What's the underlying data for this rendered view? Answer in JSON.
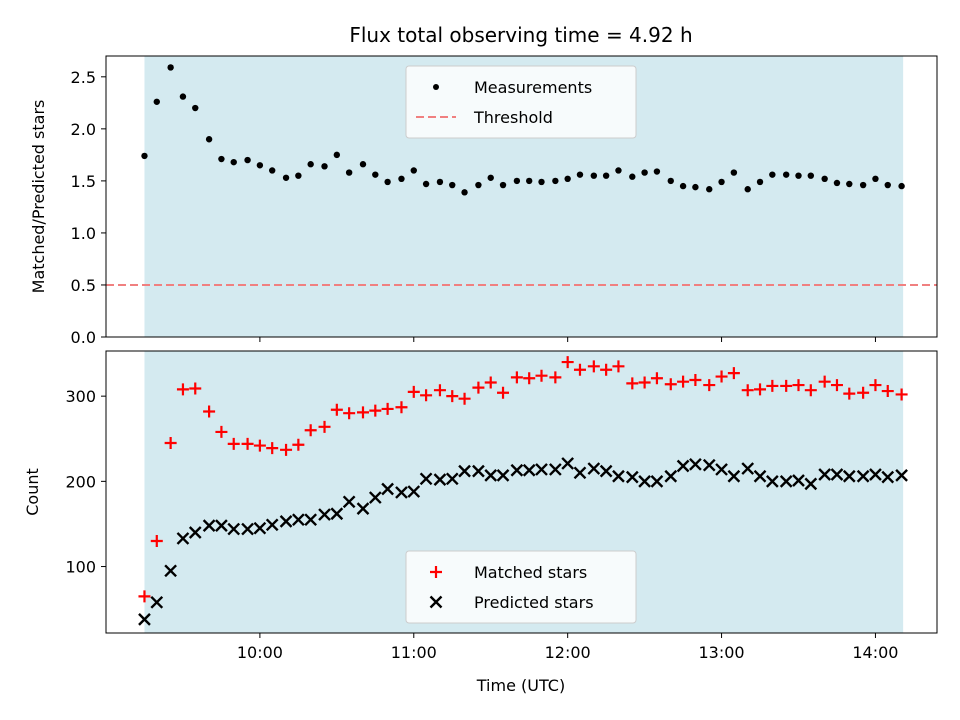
{
  "chart_data": {
    "title": "Flux total observing time = 4.92 h",
    "xlabel": "Time (UTC)",
    "x_ticks": [
      "10:00",
      "11:00",
      "12:00",
      "13:00",
      "14:00"
    ],
    "x_tick_hours": [
      10,
      11,
      12,
      13,
      14
    ],
    "xlim_hours": [
      9.0,
      14.4
    ],
    "observing_interval_hours": [
      9.25,
      14.18
    ],
    "colors": {
      "span": "#d4eaf0",
      "measurements": "#000000",
      "threshold": "#f08080",
      "matched": "#ff0000",
      "predicted": "#000000"
    },
    "panels": [
      {
        "type": "scatter",
        "ylabel": "Matched/Predicted stars",
        "ylim": [
          0,
          2.7
        ],
        "y_ticks": [
          "0.0",
          "0.5",
          "1.0",
          "1.5",
          "2.0",
          "2.5"
        ],
        "y_tick_values": [
          0,
          0.5,
          1.0,
          1.5,
          2.0,
          2.5
        ],
        "legend_position": "upper-center",
        "threshold": {
          "name": "Threshold",
          "value": 0.5,
          "style": "dashed"
        },
        "series": [
          {
            "name": "Measurements",
            "marker": "dot",
            "x": [
              9.25,
              9.33,
              9.42,
              9.5,
              9.58,
              9.67,
              9.75,
              9.83,
              9.92,
              10.0,
              10.08,
              10.17,
              10.25,
              10.33,
              10.42,
              10.5,
              10.58,
              10.67,
              10.75,
              10.83,
              10.92,
              11.0,
              11.08,
              11.17,
              11.25,
              11.33,
              11.42,
              11.5,
              11.58,
              11.67,
              11.75,
              11.83,
              11.92,
              12.0,
              12.08,
              12.17,
              12.25,
              12.33,
              12.42,
              12.5,
              12.58,
              12.67,
              12.75,
              12.83,
              12.92,
              13.0,
              13.08,
              13.17,
              13.25,
              13.33,
              13.42,
              13.5,
              13.58,
              13.67,
              13.75,
              13.83,
              13.92,
              14.0,
              14.08,
              14.17
            ],
            "values": [
              1.74,
              2.26,
              2.59,
              2.31,
              2.2,
              1.9,
              1.71,
              1.68,
              1.7,
              1.65,
              1.6,
              1.53,
              1.55,
              1.66,
              1.64,
              1.75,
              1.58,
              1.66,
              1.56,
              1.49,
              1.52,
              1.6,
              1.47,
              1.49,
              1.46,
              1.39,
              1.46,
              1.53,
              1.46,
              1.5,
              1.5,
              1.49,
              1.5,
              1.52,
              1.56,
              1.55,
              1.55,
              1.6,
              1.54,
              1.58,
              1.59,
              1.5,
              1.45,
              1.44,
              1.42,
              1.49,
              1.58,
              1.42,
              1.49,
              1.56,
              1.56,
              1.55,
              1.55,
              1.52,
              1.48,
              1.47,
              1.46,
              1.52,
              1.46,
              1.45
            ]
          }
        ]
      },
      {
        "type": "scatter",
        "ylabel": "Count",
        "ylim": [
          22,
          353
        ],
        "y_ticks": [
          "100",
          "200",
          "300"
        ],
        "y_tick_values": [
          100,
          200,
          300
        ],
        "legend_position": "lower-center",
        "series": [
          {
            "name": "Matched stars",
            "marker": "plus",
            "x": [
              9.25,
              9.33,
              9.42,
              9.5,
              9.58,
              9.67,
              9.75,
              9.83,
              9.92,
              10.0,
              10.08,
              10.17,
              10.25,
              10.33,
              10.42,
              10.5,
              10.58,
              10.67,
              10.75,
              10.83,
              10.92,
              11.0,
              11.08,
              11.17,
              11.25,
              11.33,
              11.42,
              11.5,
              11.58,
              11.67,
              11.75,
              11.83,
              11.92,
              12.0,
              12.08,
              12.17,
              12.25,
              12.33,
              12.42,
              12.5,
              12.58,
              12.67,
              12.75,
              12.83,
              12.92,
              13.0,
              13.08,
              13.17,
              13.25,
              13.33,
              13.42,
              13.5,
              13.58,
              13.67,
              13.75,
              13.83,
              13.92,
              14.0,
              14.08,
              14.17
            ],
            "values": [
              65,
              130,
              245,
              308,
              309,
              282,
              258,
              244,
              244,
              242,
              239,
              237,
              243,
              260,
              264,
              284,
              280,
              281,
              283,
              285,
              287,
              305,
              301,
              307,
              300,
              297,
              310,
              316,
              304,
              322,
              321,
              324,
              322,
              340,
              331,
              335,
              331,
              335,
              315,
              316,
              321,
              314,
              317,
              319,
              313,
              323,
              327,
              307,
              308,
              312,
              312,
              313,
              307,
              317,
              313,
              303,
              304,
              313,
              306,
              302
            ]
          },
          {
            "name": "Predicted stars",
            "marker": "x",
            "x": [
              9.25,
              9.33,
              9.42,
              9.5,
              9.58,
              9.67,
              9.75,
              9.83,
              9.92,
              10.0,
              10.08,
              10.17,
              10.25,
              10.33,
              10.42,
              10.5,
              10.58,
              10.67,
              10.75,
              10.83,
              10.92,
              11.0,
              11.08,
              11.17,
              11.25,
              11.33,
              11.42,
              11.5,
              11.58,
              11.67,
              11.75,
              11.83,
              11.92,
              12.0,
              12.08,
              12.17,
              12.25,
              12.33,
              12.42,
              12.5,
              12.58,
              12.67,
              12.75,
              12.83,
              12.92,
              13.0,
              13.08,
              13.17,
              13.25,
              13.33,
              13.42,
              13.5,
              13.58,
              13.67,
              13.75,
              13.83,
              13.92,
              14.0,
              14.08,
              14.17
            ],
            "values": [
              38,
              58,
              95,
              133,
              140,
              148,
              148,
              144,
              144,
              145,
              149,
              153,
              155,
              155,
              161,
              162,
              176,
              168,
              181,
              191,
              187,
              188,
              203,
              202,
              203,
              212,
              212,
              207,
              207,
              213,
              213,
              214,
              214,
              221,
              210,
              215,
              212,
              206,
              205,
              200,
              200,
              206,
              218,
              220,
              219,
              214,
              206,
              215,
              206,
              200,
              200,
              201,
              197,
              208,
              208,
              206,
              206,
              208,
              205,
              207
            ]
          }
        ]
      }
    ]
  }
}
